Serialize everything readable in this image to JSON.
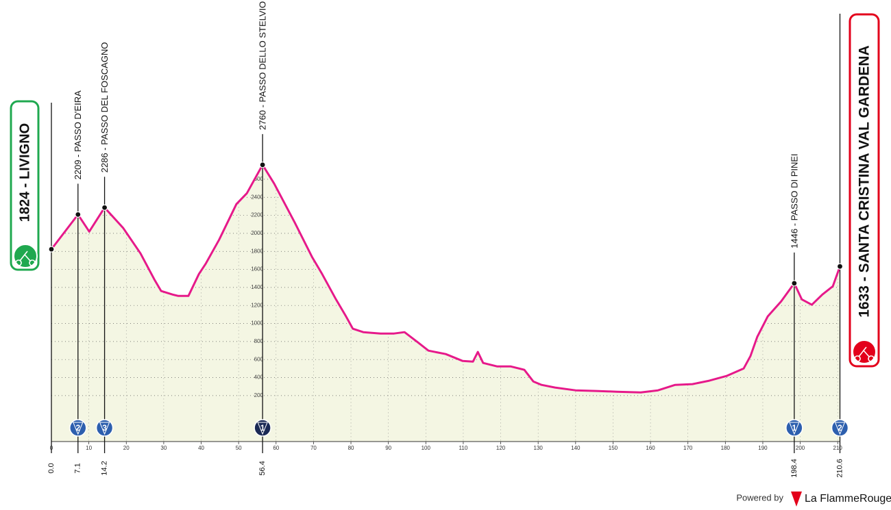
{
  "chart_data": {
    "type": "profile",
    "xlim": [
      0,
      210.6
    ],
    "ylim": [
      -310,
      2900
    ],
    "xticks": [
      0,
      10,
      20,
      30,
      40,
      50,
      60,
      70,
      80,
      90,
      100,
      110,
      120,
      130,
      140,
      150,
      160,
      170,
      180,
      190,
      200,
      210
    ],
    "yticks": [
      200,
      400,
      600,
      800,
      1000,
      1200,
      1400,
      1600,
      1800,
      2000,
      2200,
      2400,
      2600
    ],
    "grid": true,
    "line_color": "#e6198a",
    "fill_color": "#f4f6e3",
    "profile": {
      "km": [
        0,
        7.1,
        10.1,
        14.2,
        19.2,
        23.8,
        27.5,
        29.3,
        32.4,
        33.9,
        36.6,
        39.4,
        41.2,
        44.8,
        49.4,
        52.2,
        56.4,
        59.5,
        65.0,
        69.6,
        72.3,
        76.0,
        78.7,
        80.5,
        83.3,
        87.9,
        91.5,
        94.3,
        97.9,
        100.7,
        105.3,
        109.8,
        112.6,
        113.9,
        115.3,
        119.0,
        122.6,
        126.3,
        128.7,
        130.9,
        134.5,
        140.0,
        145.5,
        151.0,
        157.4,
        162.0,
        166.6,
        171.2,
        175.7,
        180.3,
        184.9,
        186.7,
        188.5,
        191.3,
        194.9,
        198.4,
        200.4,
        203.1,
        205.9,
        208.7,
        210.6
      ],
      "altitude": [
        1824,
        2209,
        2020,
        2286,
        2058,
        1777,
        1489,
        1360,
        1321,
        1306,
        1306,
        1549,
        1663,
        1929,
        2324,
        2445,
        2760,
        2552,
        2119,
        1739,
        1549,
        1268,
        1078,
        942,
        904,
        889,
        889,
        904,
        790,
        699,
        661,
        585,
        577,
        684,
        562,
        524,
        524,
        486,
        357,
        319,
        289,
        258,
        251,
        243,
        235,
        258,
        319,
        327,
        365,
        418,
        501,
        638,
        851,
        1078,
        1246,
        1446,
        1268,
        1208,
        1321,
        1413,
        1633
      ]
    },
    "start": {
      "km": {
        "value": 0,
        "label": "0.0"
      },
      "altitude": 1824,
      "label": "1824 - LIVIGNO",
      "color": "#1fa84f"
    },
    "finish": {
      "km": 210.6,
      "altitude": 1633,
      "label": "1633 - SANTA CRISTINA VAL GARDENA",
      "color": "#e3001b",
      "category": 2,
      "badge_color": "#2d5fae"
    },
    "climbs": [
      {
        "km": 7.1,
        "altitude": 2209,
        "label": "2209 - PASSO D'EIRA",
        "category": 2,
        "color": "#2d5fae"
      },
      {
        "km": 14.2,
        "altitude": 2286,
        "label": "2286 - PASSO DEL FOSCAGNO",
        "category": 3,
        "color": "#2d5fae"
      },
      {
        "km": 56.4,
        "altitude": 2760,
        "label": "2760 - PASSO DELLO STELVIO",
        "category": 1,
        "color": "#1b2a55"
      },
      {
        "km": 198.4,
        "altitude": 1446,
        "label": "1446 - PASSO DI PINEI",
        "category": 1,
        "color": "#2d5fae"
      }
    ]
  },
  "footer": {
    "powered": "Powered by",
    "brand": "La FlammeRouge"
  }
}
